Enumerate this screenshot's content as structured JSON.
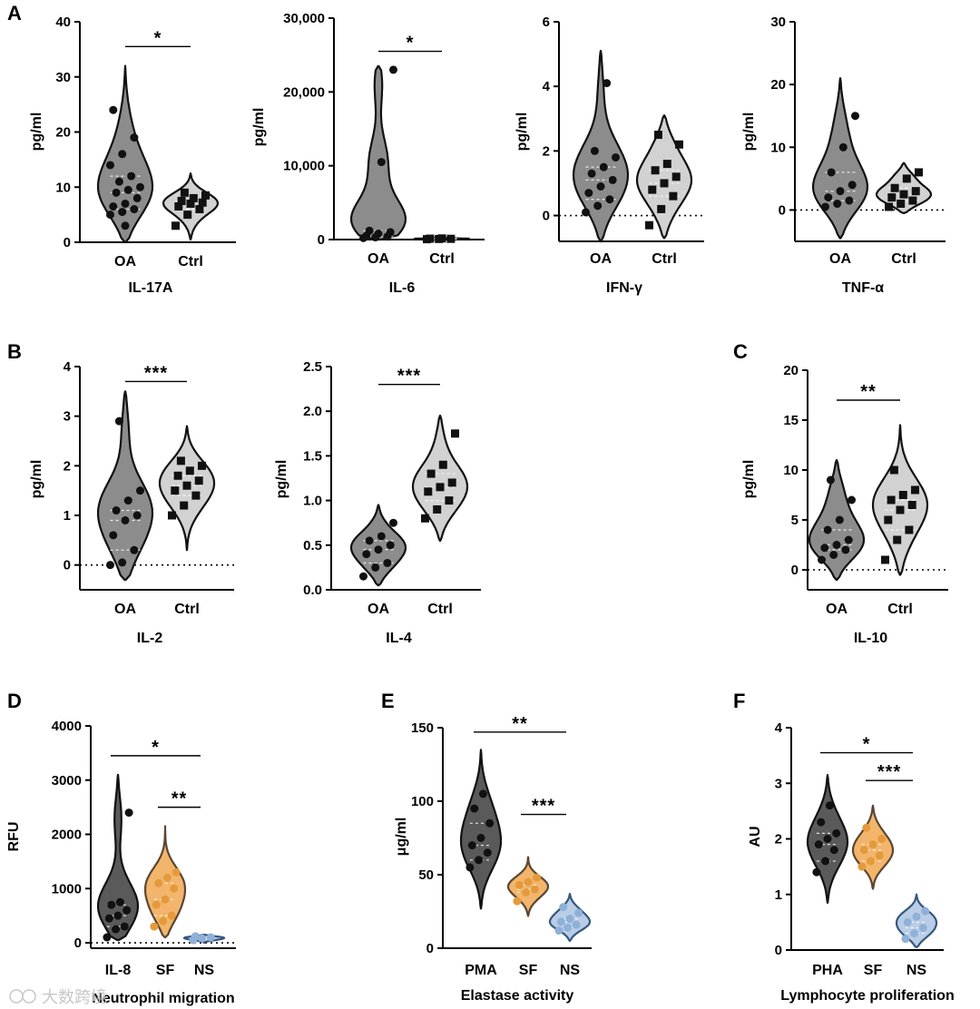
{
  "watermark": "大数跨境",
  "colors": {
    "oa_fill": "#8c8c8c",
    "ctrl_fill": "#d2d2d2",
    "dark_fill": "#5a5a5a",
    "orange_fill": "#f2b56b",
    "blue_fill": "#b9cde6",
    "edge": "#111111",
    "blue_edge": "#34577d",
    "orange_edge": "#5a4632"
  },
  "chart_data": [
    {
      "id": "IL-17A",
      "panel_label": "A",
      "type": "violin",
      "title": "IL-17A",
      "ylabel": "pg/ml",
      "ylim": [
        0,
        40
      ],
      "yticks": [
        "0",
        "10",
        "20",
        "30",
        "40"
      ],
      "zero_line": false,
      "categories": [
        "OA",
        "Ctrl"
      ],
      "series": [
        {
          "name": "OA",
          "values": [
            5,
            5.5,
            6,
            6.5,
            7,
            8,
            9,
            9.5,
            10,
            11,
            12,
            14,
            16,
            19,
            24,
            3
          ],
          "max": 32,
          "min": 0
        },
        {
          "name": "Ctrl",
          "values": [
            3,
            5,
            6,
            6.5,
            7,
            7.2,
            7.5,
            8,
            8.5,
            9
          ],
          "max": 12.5,
          "min": 0.5
        }
      ],
      "significance": [
        {
          "from": "OA",
          "to": "Ctrl",
          "label": "*",
          "y": 35.5
        }
      ]
    },
    {
      "id": "IL-6",
      "type": "violin",
      "title": "IL-6",
      "ylabel": "pg/ml",
      "ylim": [
        0,
        30000
      ],
      "yticks": [
        "0",
        "10,000",
        "20,000",
        "30,000"
      ],
      "zero_line": true,
      "categories": [
        "OA",
        "Ctrl"
      ],
      "series": [
        {
          "name": "OA",
          "values": [
            200,
            300,
            400,
            500,
            800,
            1000,
            1200,
            10500,
            23000
          ],
          "max": 23500,
          "min": 0
        },
        {
          "name": "Ctrl",
          "values": [
            50,
            80,
            100,
            120,
            150
          ],
          "max": 300,
          "min": 0
        }
      ],
      "significance": [
        {
          "from": "OA",
          "to": "Ctrl",
          "label": "*",
          "y": 25500
        }
      ]
    },
    {
      "id": "IFN-γ",
      "type": "violin",
      "title": "IFN-γ",
      "ylabel": "pg/ml",
      "ylim": [
        -0.8,
        6
      ],
      "yticks": [
        "0",
        "2",
        "4",
        "6"
      ],
      "ytick_values": [
        0,
        2,
        4,
        6
      ],
      "zero_line": true,
      "categories": [
        "OA",
        "Ctrl"
      ],
      "series": [
        {
          "name": "OA",
          "values": [
            0.1,
            0.3,
            0.5,
            0.7,
            0.9,
            1.1,
            1.3,
            1.5,
            1.8,
            2.0,
            4.1
          ],
          "max": 5.1,
          "min": -0.8
        },
        {
          "name": "Ctrl",
          "values": [
            -0.3,
            0.2,
            0.6,
            0.8,
            1.0,
            1.2,
            1.4,
            1.6,
            2.2,
            2.5
          ],
          "max": 3.1,
          "min": -0.7
        }
      ],
      "significance": []
    },
    {
      "id": "TNF-α",
      "type": "violin",
      "title": "TNF-α",
      "ylabel": "pg/ml",
      "ylim": [
        -5,
        30
      ],
      "yticks": [
        "0",
        "10",
        "20",
        "30"
      ],
      "ytick_values": [
        0,
        10,
        20,
        30
      ],
      "zero_line": true,
      "categories": [
        "OA",
        "Ctrl"
      ],
      "series": [
        {
          "name": "OA",
          "values": [
            0.5,
            1,
            1.5,
            2,
            3,
            4,
            6,
            10,
            15
          ],
          "max": 21,
          "min": -4.5
        },
        {
          "name": "Ctrl",
          "values": [
            0.5,
            1,
            1.5,
            2,
            2.5,
            3,
            3.5,
            5,
            6
          ],
          "max": 7.5,
          "min": -0.5
        }
      ],
      "significance": []
    },
    {
      "id": "IL-2",
      "panel_label": "B",
      "type": "violin",
      "title": "IL-2",
      "ylabel": "pg/ml",
      "ylim": [
        -0.5,
        4
      ],
      "yticks": [
        "0",
        "1",
        "2",
        "3",
        "4"
      ],
      "ytick_values": [
        0,
        1,
        2,
        3,
        4
      ],
      "zero_line": true,
      "categories": [
        "OA",
        "Ctrl"
      ],
      "series": [
        {
          "name": "OA",
          "values": [
            0,
            0.05,
            0.3,
            0.6,
            0.9,
            1.0,
            1.1,
            1.3,
            1.5,
            2.9
          ],
          "max": 3.5,
          "min": -0.3
        },
        {
          "name": "Ctrl",
          "values": [
            1.0,
            1.2,
            1.4,
            1.5,
            1.6,
            1.7,
            1.8,
            1.9,
            2.0,
            2.1
          ],
          "max": 2.8,
          "min": 0.3
        }
      ],
      "significance": [
        {
          "from": "OA",
          "to": "Ctrl",
          "label": "***",
          "y": 3.7
        }
      ]
    },
    {
      "id": "IL-4",
      "type": "violin",
      "title": "IL-4",
      "ylabel": "pg/ml",
      "ylim": [
        0,
        2.5
      ],
      "yticks": [
        "0.0",
        "0.5",
        "1.0",
        "1.5",
        "2.0",
        "2.5"
      ],
      "ytick_values": [
        0,
        0.5,
        1,
        1.5,
        2,
        2.5
      ],
      "zero_line": false,
      "categories": [
        "OA",
        "Ctrl"
      ],
      "series": [
        {
          "name": "OA",
          "values": [
            0.15,
            0.25,
            0.3,
            0.4,
            0.45,
            0.5,
            0.55,
            0.6,
            0.75
          ],
          "max": 0.95,
          "min": 0.05
        },
        {
          "name": "Ctrl",
          "values": [
            0.8,
            0.9,
            1.0,
            1.1,
            1.15,
            1.2,
            1.3,
            1.4,
            1.75
          ],
          "max": 1.95,
          "min": 0.55
        }
      ],
      "significance": [
        {
          "from": "OA",
          "to": "Ctrl",
          "label": "***",
          "y": 2.3
        }
      ]
    },
    {
      "id": "IL-10",
      "panel_label": "C",
      "type": "violin",
      "title": "IL-10",
      "ylabel": "pg/ml",
      "ylim": [
        -2,
        20
      ],
      "yticks": [
        "0",
        "5",
        "10",
        "15",
        "20"
      ],
      "ytick_values": [
        0,
        5,
        10,
        15,
        20
      ],
      "zero_line": true,
      "categories": [
        "OA",
        "Ctrl"
      ],
      "series": [
        {
          "name": "OA",
          "values": [
            1,
            1.5,
            2,
            2.2,
            2.5,
            3,
            4,
            5,
            7,
            9
          ],
          "max": 11,
          "min": -1
        },
        {
          "name": "Ctrl",
          "values": [
            1,
            3,
            4,
            5,
            6,
            6.5,
            7,
            7.5,
            8,
            10
          ],
          "max": 14.5,
          "min": -0.5
        }
      ],
      "significance": [
        {
          "from": "OA",
          "to": "Ctrl",
          "label": "**",
          "y": 17
        }
      ]
    },
    {
      "id": "Neutrophil migration",
      "panel_label": "D",
      "type": "violin",
      "title": "Neutrophil migration",
      "ylabel": "RFU",
      "ylim": [
        -100,
        4000
      ],
      "yticks": [
        "0",
        "1000",
        "2000",
        "3000",
        "4000"
      ],
      "ytick_values": [
        0,
        1000,
        2000,
        3000,
        4000
      ],
      "zero_line": true,
      "categories": [
        "IL-8",
        "SF",
        "NS"
      ],
      "series": [
        {
          "name": "IL-8",
          "values": [
            100,
            250,
            300,
            450,
            500,
            600,
            700,
            750,
            2400
          ],
          "max": 3100,
          "min": 50
        },
        {
          "name": "SF",
          "values": [
            300,
            400,
            500,
            700,
            800,
            1000,
            1100,
            1200,
            1300
          ],
          "max": 2150,
          "min": 100
        },
        {
          "name": "NS",
          "values": [
            50,
            80,
            100,
            120
          ],
          "max": 150,
          "min": 0
        }
      ],
      "significance": [
        {
          "from": "IL-8",
          "to": "NS",
          "label": "*",
          "y": 3450
        },
        {
          "from": "SF",
          "to": "NS",
          "label": "**",
          "y": 2500
        }
      ]
    },
    {
      "id": "Elastase activity",
      "panel_label": "E",
      "type": "violin",
      "title": "Elastase activity",
      "ylabel": "μg/ml",
      "ylim": [
        0,
        150
      ],
      "yticks": [
        "0",
        "50",
        "100",
        "150"
      ],
      "ytick_values": [
        0,
        50,
        100,
        150
      ],
      "zero_line": false,
      "categories": [
        "PMA",
        "SF",
        "NS"
      ],
      "series": [
        {
          "name": "PMA",
          "values": [
            55,
            60,
            65,
            70,
            75,
            85,
            95,
            105
          ],
          "max": 135,
          "min": 27
        },
        {
          "name": "SF",
          "values": [
            32,
            38,
            40,
            43,
            45,
            48
          ],
          "max": 62,
          "min": 22
        },
        {
          "name": "NS",
          "values": [
            12,
            14,
            16,
            18,
            20,
            24,
            28
          ],
          "max": 37,
          "min": 5
        }
      ],
      "significance": [
        {
          "from": "PMA",
          "to": "NS",
          "label": "**",
          "y": 147
        },
        {
          "from": "SF",
          "to": "NS",
          "label": "***",
          "y": 91
        }
      ]
    },
    {
      "id": "Lymphocyte proliferation",
      "panel_label": "F",
      "type": "violin",
      "title": "Lymphocyte proliferation",
      "ylabel": "AU",
      "ylim": [
        0,
        4
      ],
      "yticks": [
        "0",
        "1",
        "2",
        "3",
        "4"
      ],
      "ytick_values": [
        0,
        1,
        2,
        3,
        4
      ],
      "zero_line": false,
      "categories": [
        "PHA",
        "SF",
        "NS"
      ],
      "series": [
        {
          "name": "PHA",
          "values": [
            1.4,
            1.6,
            1.8,
            1.9,
            2.0,
            2.1,
            2.3,
            2.6
          ],
          "max": 3.15,
          "min": 0.85
        },
        {
          "name": "SF",
          "values": [
            1.5,
            1.6,
            1.7,
            1.8,
            1.9,
            2.0,
            2.2
          ],
          "max": 2.6,
          "min": 1.1
        },
        {
          "name": "NS",
          "values": [
            0.2,
            0.3,
            0.4,
            0.5,
            0.6,
            0.7
          ],
          "max": 1.0,
          "min": 0.05
        }
      ],
      "significance": [
        {
          "from": "PHA",
          "to": "NS",
          "label": "*",
          "y": 3.55
        },
        {
          "from": "SF",
          "to": "NS",
          "label": "***",
          "y": 3.05
        }
      ]
    }
  ]
}
